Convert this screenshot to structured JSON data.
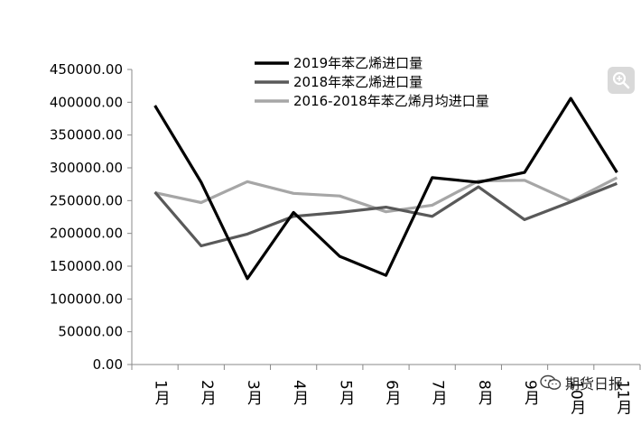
{
  "chart_data": {
    "type": "line",
    "categories": [
      "1月",
      "2月",
      "3月",
      "4月",
      "5月",
      "6月",
      "7月",
      "8月",
      "9月",
      "10月",
      "11月"
    ],
    "y_ticks": [
      "450000.00",
      "400000.00",
      "350000.00",
      "300000.00",
      "250000.00",
      "200000.00",
      "150000.00",
      "100000.00",
      "50000.00",
      "0.00"
    ],
    "ylim": [
      0,
      450000
    ],
    "grid": false,
    "legend_position": "top",
    "series": [
      {
        "name": "2019年苯乙烯进口量",
        "color": "#000000",
        "values": [
          395000,
          278000,
          131000,
          232000,
          165000,
          136000,
          285000,
          278000,
          293000,
          406000,
          293000
        ]
      },
      {
        "name": "2018年苯乙烯进口量",
        "color": "#595959",
        "values": [
          263000,
          181000,
          199000,
          226000,
          232000,
          240000,
          226000,
          271000,
          221000,
          248000,
          276000
        ]
      },
      {
        "name": "2016-2018年苯乙烯月均进口量",
        "color": "#a6a6a6",
        "values": [
          262000,
          247000,
          279000,
          261000,
          257000,
          233000,
          243000,
          280000,
          281000,
          249000,
          285000
        ]
      }
    ]
  },
  "overlay": {
    "zoom_icon": "zoom-search-icon",
    "watermark_text": "期货日报",
    "watermark_icon": "wechat-icon"
  }
}
